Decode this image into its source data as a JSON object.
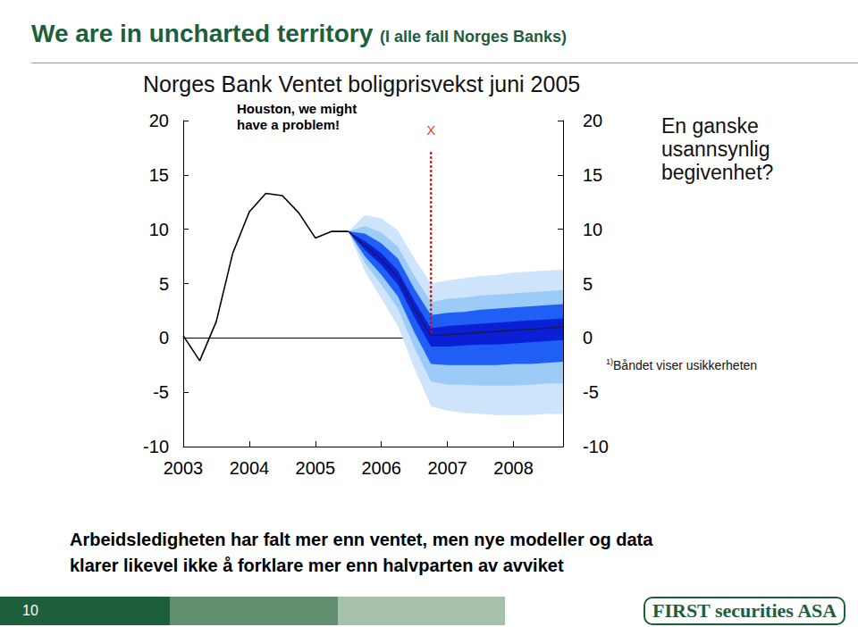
{
  "page": {
    "title": "We are in uncharted territory",
    "title_note": "(I alle fall Norges Banks)",
    "side_note": "En ganske\nusannsynlig\nbegivenhet?",
    "footnote_marker": "1)",
    "footnote": "Båndet viser usikkerheten",
    "caption": "Arbeidsledigheten har falt mer enn ventet, men nye modeller og data\nklarer likevel ikke å forklare mer enn halvparten av avviket",
    "page_number": "10",
    "logo": "FIRST securities ASA"
  },
  "chart_data": {
    "type": "line",
    "title": "Norges Bank Ventet boligprisvekst juni 2005",
    "xlim": [
      2003,
      2008.75
    ],
    "xticks": [
      2003,
      2004,
      2005,
      2006,
      2007,
      2008
    ],
    "ylim": [
      -10,
      20
    ],
    "yticks": [
      -10,
      -5,
      0,
      5,
      10,
      15,
      20
    ],
    "y2lim": [
      -10,
      20
    ],
    "y2ticks": [
      -10,
      -5,
      0,
      5,
      10,
      15,
      20
    ],
    "grid": false,
    "annotations": [
      {
        "text": "Houston, we might\nhave a problem!"
      },
      {
        "text": "X",
        "x": 2006.75,
        "y": 19.1,
        "color": "#e00000"
      }
    ],
    "series": [
      {
        "type": "band",
        "color": "#cde4fb",
        "x": [
          2005.5,
          2005.75,
          2006,
          2006.25,
          2006.5,
          2006.75,
          2007,
          2007.25,
          2007.5,
          2007.75,
          2008,
          2008.25,
          2008.5,
          2008.75
        ],
        "upper": [
          9.8,
          11.3,
          11.0,
          9.9,
          7.3,
          5.0,
          5.3,
          5.5,
          5.7,
          5.8,
          6.0,
          6.1,
          6.2,
          6.3
        ],
        "lower": [
          9.8,
          6.1,
          3.6,
          1.1,
          -2.8,
          -6.3,
          -6.7,
          -6.9,
          -7.0,
          -7.1,
          -7.1,
          -7.1,
          -7.0,
          -7.0
        ]
      },
      {
        "type": "band",
        "color": "#9ccbf8",
        "x": [
          2005.5,
          2005.75,
          2006,
          2006.25,
          2006.5,
          2006.75,
          2007,
          2007.25,
          2007.5,
          2007.75,
          2008,
          2008.25,
          2008.5,
          2008.75
        ],
        "upper": [
          9.8,
          10.3,
          9.7,
          8.4,
          5.7,
          3.3,
          3.6,
          3.7,
          3.9,
          4.0,
          4.1,
          4.2,
          4.3,
          4.4
        ],
        "lower": [
          9.8,
          6.9,
          4.9,
          2.7,
          -0.9,
          -4.0,
          -4.3,
          -4.3,
          -4.4,
          -4.4,
          -4.4,
          -4.3,
          -4.2,
          -4.2
        ]
      },
      {
        "type": "band",
        "color": "#1f5ff5",
        "x": [
          2005.5,
          2005.75,
          2006,
          2006.25,
          2006.5,
          2006.75,
          2007,
          2007.25,
          2007.5,
          2007.75,
          2008,
          2008.25,
          2008.5,
          2008.75
        ],
        "upper": [
          9.8,
          9.6,
          8.7,
          7.3,
          4.5,
          2.1,
          2.3,
          2.4,
          2.6,
          2.7,
          2.8,
          2.9,
          3.0,
          3.1
        ],
        "lower": [
          9.8,
          7.5,
          5.8,
          3.8,
          0.5,
          -2.4,
          -2.5,
          -2.5,
          -2.5,
          -2.5,
          -2.4,
          -2.4,
          -2.3,
          -2.2
        ]
      },
      {
        "type": "band",
        "color": "#0a1fd6",
        "x": [
          2005.5,
          2005.75,
          2006,
          2006.25,
          2006.5,
          2006.75,
          2007,
          2007.25,
          2007.5,
          2007.75,
          2008,
          2008.25,
          2008.5,
          2008.75
        ],
        "upper": [
          9.8,
          8.9,
          7.8,
          6.2,
          3.4,
          0.9,
          1.1,
          1.2,
          1.3,
          1.4,
          1.5,
          1.6,
          1.7,
          1.8
        ],
        "lower": [
          9.8,
          8.1,
          6.7,
          4.9,
          1.9,
          -0.8,
          -0.8,
          -0.7,
          -0.6,
          -0.6,
          -0.5,
          -0.4,
          -0.3,
          -0.2
        ]
      },
      {
        "type": "line",
        "color": "#1a1a50",
        "line_style": "solid",
        "x": [
          2005.5,
          2005.75,
          2006,
          2006.25,
          2006.5,
          2006.75,
          2007,
          2007.25,
          2007.5,
          2007.75,
          2008,
          2008.25,
          2008.5,
          2008.75
        ],
        "values": [
          9.8,
          8.5,
          7.2,
          5.6,
          2.7,
          0.2,
          0.3,
          0.4,
          0.5,
          0.6,
          0.7,
          0.8,
          0.9,
          1.0
        ]
      },
      {
        "type": "line",
        "color": "#000000",
        "line_style": "solid",
        "x": [
          2003,
          2003.25,
          2003.5,
          2003.75,
          2004,
          2004.25,
          2004.5,
          2004.75,
          2005,
          2005.25,
          2005.5
        ],
        "values": [
          0.2,
          -2.1,
          1.5,
          7.8,
          11.6,
          13.3,
          13.1,
          11.5,
          9.2,
          9.8,
          9.8
        ]
      },
      {
        "type": "line",
        "color": "#e00000",
        "line_style": "dotted",
        "x": [
          2006.75,
          2006.75
        ],
        "values": [
          17.1,
          0.3
        ]
      }
    ]
  }
}
